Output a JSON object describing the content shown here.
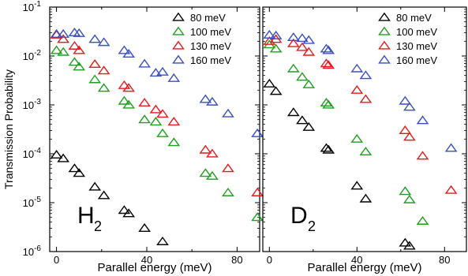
{
  "chart_data": [
    {
      "type": "scatter",
      "panel_label": "H",
      "panel_label_sub": "2",
      "xlabel": "Parallel energy (meV)",
      "ylabel": "Transmission Probability",
      "xlim": [
        -3,
        90
      ],
      "ylim": [
        1e-06,
        0.1
      ],
      "yscale": "log",
      "x_ticks": [
        0,
        40,
        80
      ],
      "y_ticks": [
        1e-06,
        1e-05,
        0.0001,
        0.001,
        0.01,
        0.1
      ],
      "y_tick_labels": [
        {
          "base": "10",
          "exp": "-6"
        },
        {
          "base": "10",
          "exp": "-5"
        },
        {
          "base": "10",
          "exp": "-4"
        },
        {
          "base": "10",
          "exp": "-3"
        },
        {
          "base": "10",
          "exp": "-2"
        },
        {
          "base": "10",
          "exp": "-1"
        }
      ],
      "marker": "open-triangle",
      "legend_position": "top-right",
      "series": [
        {
          "name": "80 meV",
          "color": "#000000",
          "x": [
            0,
            3,
            8,
            10,
            17,
            21,
            30,
            32,
            39,
            47
          ],
          "y": [
            9.5e-05,
            8e-05,
            5e-05,
            4e-05,
            2.1e-05,
            1.4e-05,
            7e-06,
            6e-06,
            3e-06,
            1.6e-06
          ]
        },
        {
          "name": "100 meV",
          "color": "#1f9e1f",
          "x": [
            0,
            3,
            8,
            10,
            17,
            21,
            30,
            32,
            39,
            44,
            47,
            52,
            66,
            69,
            76,
            89
          ],
          "y": [
            0.013,
            0.012,
            0.0075,
            0.006,
            0.0033,
            0.0022,
            0.0012,
            0.001,
            0.0005,
            0.00045,
            0.00026,
            0.00017,
            4e-05,
            3.5e-05,
            1.6e-05,
            5e-06
          ]
        },
        {
          "name": "130 meV",
          "color": "#e41a1c",
          "x": [
            0,
            3,
            8,
            10,
            17,
            21,
            30,
            32,
            39,
            44,
            47,
            52,
            66,
            69,
            76,
            89
          ],
          "y": [
            0.027,
            0.022,
            0.016,
            0.013,
            0.0068,
            0.005,
            0.0025,
            0.0022,
            0.0011,
            0.0008,
            0.00065,
            0.00045,
            0.00012,
            0.0001,
            5e-05,
            1.6e-05
          ]
        },
        {
          "name": "160 meV",
          "color": "#3a4fc1",
          "x": [
            0,
            3,
            8,
            10,
            17,
            21,
            30,
            32,
            39,
            44,
            47,
            52,
            66,
            69,
            76,
            89
          ],
          "y": [
            0.028,
            0.028,
            0.03,
            0.029,
            0.022,
            0.019,
            0.013,
            0.011,
            0.0069,
            0.0045,
            0.0047,
            0.0035,
            0.0013,
            0.00115,
            0.00066,
            0.00026
          ]
        }
      ]
    },
    {
      "type": "scatter",
      "panel_label": "D",
      "panel_label_sub": "2",
      "xlabel": "Parallel energy (meV)",
      "xlim": [
        -3,
        90
      ],
      "ylim": [
        1e-06,
        0.1
      ],
      "yscale": "log",
      "x_ticks": [
        0,
        40,
        80
      ],
      "marker": "open-triangle",
      "legend_position": "top-right",
      "series": [
        {
          "name": "80 meV",
          "color": "#000000",
          "x": [
            0,
            3,
            11,
            15,
            18,
            26,
            27,
            40,
            44,
            62,
            64
          ],
          "y": [
            0.0027,
            0.0019,
            0.0007,
            0.00048,
            0.00035,
            0.00013,
            0.00012,
            2.2e-05,
            1.2e-05,
            1.5e-06,
            1.3e-06
          ]
        },
        {
          "name": "100 meV",
          "color": "#1f9e1f",
          "x": [
            0,
            3,
            11,
            15,
            18,
            26,
            27,
            40,
            44,
            62,
            64,
            70
          ],
          "y": [
            0.017,
            0.014,
            0.0055,
            0.0037,
            0.0026,
            0.0011,
            0.001,
            0.0002,
            0.00011,
            1.7e-05,
            1.15e-05,
            4.2e-06
          ]
        },
        {
          "name": "130 meV",
          "color": "#e41a1c",
          "x": [
            0,
            3,
            11,
            15,
            18,
            26,
            27,
            40,
            44,
            62,
            64,
            70,
            83
          ],
          "y": [
            0.02,
            0.022,
            0.018,
            0.015,
            0.012,
            0.007,
            0.0065,
            0.002,
            0.0013,
            0.0003,
            0.00022,
            9e-05,
            1.8e-05
          ]
        },
        {
          "name": "160 meV",
          "color": "#3a4fc1",
          "x": [
            0,
            3,
            11,
            15,
            18,
            26,
            27,
            40,
            44,
            62,
            64,
            70,
            83
          ],
          "y": [
            0.027,
            0.026,
            0.024,
            0.023,
            0.021,
            0.014,
            0.013,
            0.0055,
            0.004,
            0.0012,
            0.0009,
            0.00048,
            0.00013
          ]
        }
      ]
    }
  ]
}
